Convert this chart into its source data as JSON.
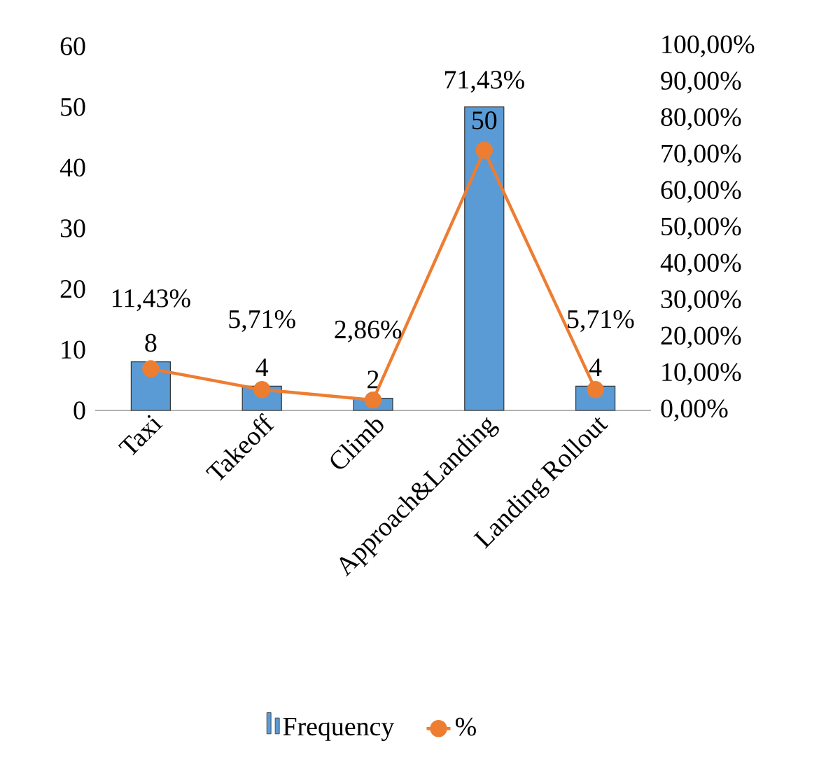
{
  "chart_data": {
    "type": "bar",
    "categories": [
      "Taxi",
      "Takeoff",
      "Climb",
      "Approach&Landing",
      "Landing Rollout"
    ],
    "series": [
      {
        "name": "Frequency",
        "color": "#5b9bd5",
        "values": [
          8,
          4,
          2,
          50,
          4
        ],
        "value_labels": [
          "8",
          "4",
          "2",
          "50",
          "4"
        ]
      },
      {
        "name": "%",
        "type": "line",
        "axis": "y2",
        "color": "#ed7d31",
        "values": [
          11.43,
          5.71,
          2.86,
          71.43,
          5.71
        ],
        "value_labels": [
          "11,43%",
          "5,71%",
          "2,86%",
          "71,43%",
          "5,71%"
        ]
      }
    ],
    "ylim": [
      0,
      60
    ],
    "yticks": [
      0,
      10,
      20,
      30,
      40,
      50,
      60
    ],
    "y2lim": [
      0,
      100
    ],
    "y2ticks": [
      {
        "value": 0,
        "label": "0,00%"
      },
      {
        "value": 10,
        "label": "10,00%"
      },
      {
        "value": 20,
        "label": "20,00%"
      },
      {
        "value": 30,
        "label": "30,00%"
      },
      {
        "value": 40,
        "label": "40,00%"
      },
      {
        "value": 50,
        "label": "50,00%"
      },
      {
        "value": 60,
        "label": "60,00%"
      },
      {
        "value": 70,
        "label": "70,00%"
      },
      {
        "value": 80,
        "label": "80,00%"
      },
      {
        "value": 90,
        "label": "90,00%"
      },
      {
        "value": 100,
        "label": "100,00%"
      }
    ],
    "marker": "circle",
    "legend": "bottom",
    "grid": false
  }
}
